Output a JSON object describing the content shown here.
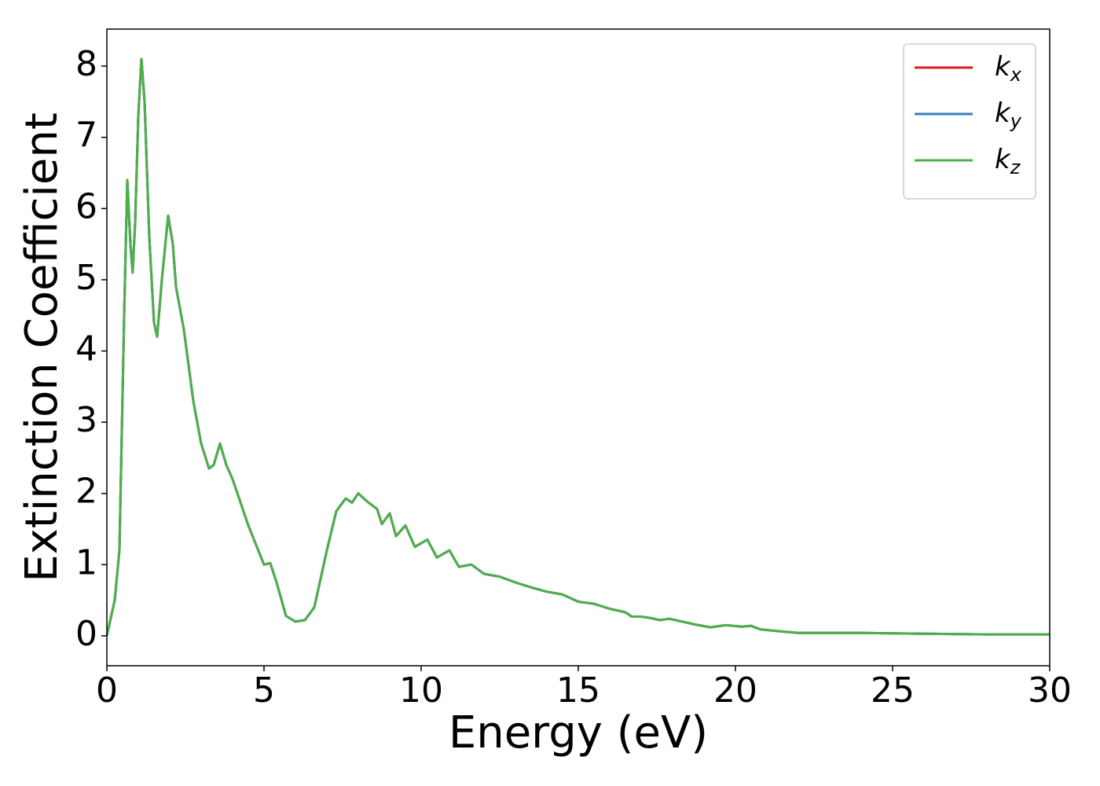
{
  "chart_data": {
    "type": "line",
    "xlabel": "Energy (eV)",
    "ylabel": "Extinction Coefficient",
    "x": [
      0,
      0.25,
      0.4,
      0.55,
      0.65,
      0.75,
      0.82,
      0.9,
      1.0,
      1.1,
      1.2,
      1.35,
      1.5,
      1.6,
      1.75,
      1.95,
      2.1,
      2.2,
      2.45,
      2.75,
      3.0,
      3.25,
      3.4,
      3.6,
      3.8,
      4.0,
      4.5,
      5.0,
      5.2,
      5.4,
      5.7,
      6.0,
      6.3,
      6.6,
      7.0,
      7.3,
      7.6,
      7.8,
      8.0,
      8.3,
      8.6,
      8.75,
      9.0,
      9.2,
      9.5,
      9.8,
      10.2,
      10.5,
      10.9,
      11.2,
      11.6,
      12.0,
      12.5,
      13.0,
      13.5,
      14.0,
      14.5,
      15.0,
      15.5,
      16.0,
      16.5,
      16.7,
      17.0,
      17.3,
      17.6,
      17.9,
      18.3,
      18.7,
      19.2,
      19.7,
      20.2,
      20.5,
      20.8,
      21.5,
      22.0,
      24,
      26,
      28,
      30
    ],
    "series": [
      {
        "name": "k_x",
        "color": "#e41a1c",
        "values": [
          0,
          0.5,
          1.2,
          4.5,
          6.4,
          5.5,
          5.1,
          5.8,
          7.3,
          8.1,
          7.5,
          5.6,
          4.4,
          4.2,
          5.0,
          5.9,
          5.5,
          4.9,
          4.3,
          3.3,
          2.7,
          2.35,
          2.4,
          2.7,
          2.4,
          2.2,
          1.55,
          1.0,
          1.02,
          0.75,
          0.28,
          0.2,
          0.22,
          0.4,
          1.2,
          1.75,
          1.93,
          1.87,
          2.0,
          1.88,
          1.78,
          1.57,
          1.72,
          1.4,
          1.55,
          1.25,
          1.35,
          1.1,
          1.2,
          0.97,
          1.0,
          0.87,
          0.83,
          0.75,
          0.68,
          0.62,
          0.58,
          0.48,
          0.45,
          0.38,
          0.33,
          0.27,
          0.27,
          0.25,
          0.22,
          0.24,
          0.2,
          0.16,
          0.12,
          0.15,
          0.13,
          0.14,
          0.09,
          0.06,
          0.04,
          0.04,
          0.03,
          0.02,
          0.02
        ]
      },
      {
        "name": "k_y",
        "color": "#377eb8",
        "values": [
          0,
          0.5,
          1.2,
          4.5,
          6.4,
          5.5,
          5.1,
          5.8,
          7.3,
          8.1,
          7.5,
          5.6,
          4.4,
          4.2,
          5.0,
          5.9,
          5.5,
          4.9,
          4.3,
          3.3,
          2.7,
          2.35,
          2.4,
          2.7,
          2.4,
          2.2,
          1.55,
          1.0,
          1.02,
          0.75,
          0.28,
          0.2,
          0.22,
          0.4,
          1.2,
          1.75,
          1.93,
          1.87,
          2.0,
          1.88,
          1.78,
          1.57,
          1.72,
          1.4,
          1.55,
          1.25,
          1.35,
          1.1,
          1.2,
          0.97,
          1.0,
          0.87,
          0.83,
          0.75,
          0.68,
          0.62,
          0.58,
          0.48,
          0.45,
          0.38,
          0.33,
          0.27,
          0.27,
          0.25,
          0.22,
          0.24,
          0.2,
          0.16,
          0.12,
          0.15,
          0.13,
          0.14,
          0.09,
          0.06,
          0.04,
          0.04,
          0.03,
          0.02,
          0.02
        ]
      },
      {
        "name": "k_z",
        "color": "#4daf4a",
        "values": [
          0,
          0.5,
          1.2,
          4.5,
          6.4,
          5.5,
          5.1,
          5.8,
          7.3,
          8.1,
          7.5,
          5.6,
          4.4,
          4.2,
          5.0,
          5.9,
          5.5,
          4.9,
          4.3,
          3.3,
          2.7,
          2.35,
          2.4,
          2.7,
          2.4,
          2.2,
          1.55,
          1.0,
          1.02,
          0.75,
          0.28,
          0.2,
          0.22,
          0.4,
          1.2,
          1.75,
          1.93,
          1.87,
          2.0,
          1.88,
          1.78,
          1.57,
          1.72,
          1.4,
          1.55,
          1.25,
          1.35,
          1.1,
          1.2,
          0.97,
          1.0,
          0.87,
          0.83,
          0.75,
          0.68,
          0.62,
          0.58,
          0.48,
          0.45,
          0.38,
          0.33,
          0.27,
          0.27,
          0.25,
          0.22,
          0.24,
          0.2,
          0.16,
          0.12,
          0.15,
          0.13,
          0.14,
          0.09,
          0.06,
          0.04,
          0.04,
          0.03,
          0.02,
          0.02
        ]
      }
    ],
    "xlim": [
      0,
      30
    ],
    "xticks": [
      0,
      5,
      10,
      15,
      20,
      25,
      30
    ],
    "ylim": [
      -0.42,
      8.52
    ],
    "yticks": [
      0,
      1,
      2,
      3,
      4,
      5,
      6,
      7,
      8
    ],
    "grid": false,
    "legend": "upper right"
  }
}
